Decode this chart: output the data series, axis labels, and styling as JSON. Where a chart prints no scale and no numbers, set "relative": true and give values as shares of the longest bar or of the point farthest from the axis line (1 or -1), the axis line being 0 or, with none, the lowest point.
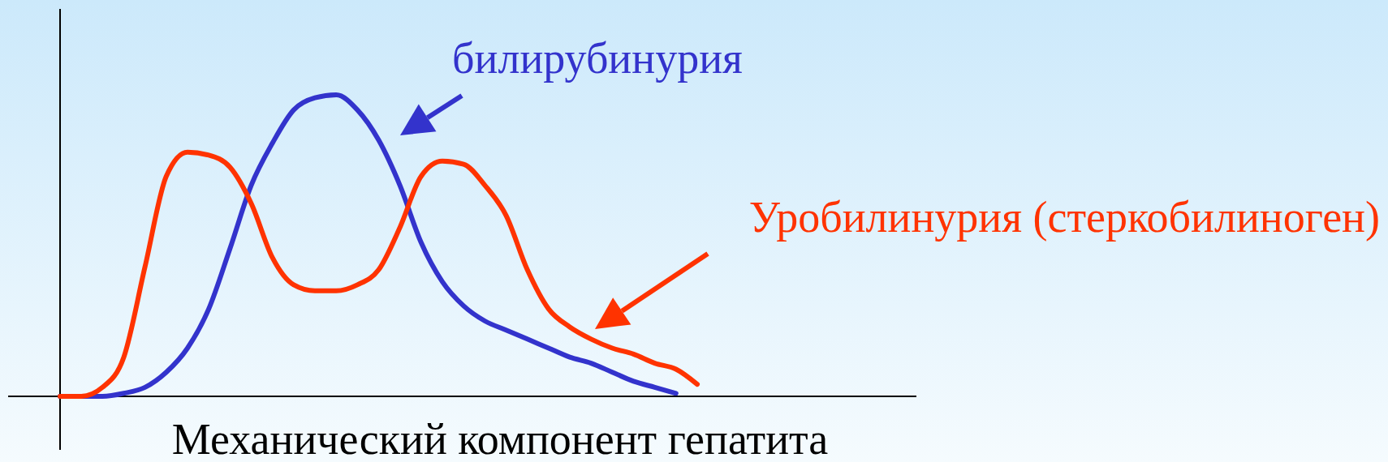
{
  "chart_data": {
    "type": "line",
    "relative": true,
    "xlabel": "Механический компонент гепатита",
    "categories": [
      null,
      null,
      null,
      null,
      null,
      null,
      null,
      null,
      null,
      null,
      null,
      null,
      null,
      null,
      null,
      null,
      null,
      null,
      null,
      null,
      null,
      null,
      null,
      null,
      null,
      null,
      null,
      null,
      null,
      null,
      null
    ],
    "series": [
      {
        "name": "билирубинурия",
        "color": "#3333cc",
        "values": [
          0,
          0,
          0,
          0.01,
          0.03,
          0.08,
          0.16,
          0.29,
          0.49,
          0.7,
          0.84,
          0.95,
          0.99,
          1,
          0.95,
          0.85,
          0.7,
          0.51,
          0.38,
          0.3,
          0.25,
          0.22,
          0.19,
          0.16,
          0.13,
          0.11,
          0.08,
          0.05,
          0.03,
          0.01,
          null
        ]
      },
      {
        "name": "Уробилинурия (стеркобилиноген)",
        "color": "#ff3300",
        "values": [
          0,
          0,
          0.03,
          0.13,
          0.43,
          0.73,
          0.81,
          0.8,
          0.76,
          0.64,
          0.46,
          0.37,
          0.35,
          0.35,
          0.37,
          0.42,
          0.56,
          0.73,
          0.78,
          0.77,
          0.7,
          0.6,
          0.42,
          0.29,
          0.23,
          0.19,
          0.16,
          0.14,
          0.11,
          0.09,
          0.04
        ]
      }
    ],
    "marker": "none",
    "line_style": "solid"
  }
}
